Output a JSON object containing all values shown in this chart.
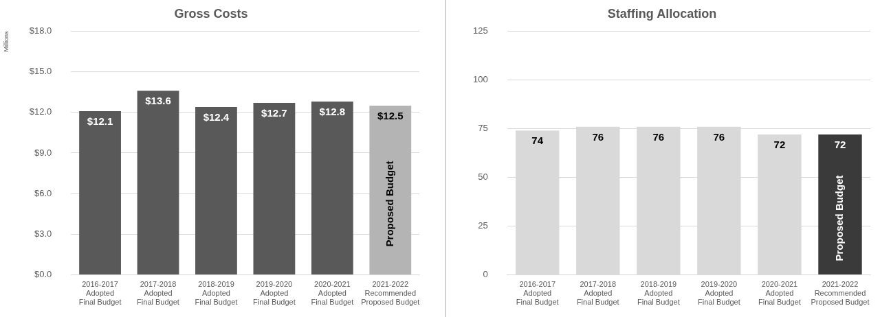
{
  "chart_data": [
    {
      "type": "bar",
      "title": "Gross Costs",
      "ylabel": "Millions",
      "categories": [
        "2016-2017\nAdopted\nFinal Budget",
        "2017-2018\nAdopted\nFinal Budget",
        "2018-2019\nAdopted\nFinal Budget",
        "2019-2020\nAdopted\nFinal Budget",
        "2020-2021\nAdopted\nFinal Budget",
        "2021-2022\nRecommended\nProposed Budget"
      ],
      "values": [
        12.1,
        13.6,
        12.4,
        12.7,
        12.8,
        12.5
      ],
      "value_labels": [
        "$12.1",
        "$13.6",
        "$12.4",
        "$12.7",
        "$12.8",
        "$12.5"
      ],
      "colors": [
        "#595959",
        "#595959",
        "#595959",
        "#595959",
        "#595959",
        "#b4b4b4"
      ],
      "ylim": [
        0,
        18
      ],
      "yticks": [
        {
          "value": 0,
          "label": "$0.0"
        },
        {
          "value": 3,
          "label": "$3.0"
        },
        {
          "value": 6,
          "label": "$6.0"
        },
        {
          "value": 9,
          "label": "$9.0"
        },
        {
          "value": 12,
          "label": "$12.0"
        },
        {
          "value": 15,
          "label": "$15.0"
        },
        {
          "value": 18,
          "label": "$18.0"
        }
      ],
      "grid": "y",
      "annotations": [
        "Proposed Budget"
      ]
    },
    {
      "type": "bar",
      "title": "Staffing Allocation",
      "categories": [
        "2016-2017\nAdopted\nFinal Budget",
        "2017-2018\nAdopted\nFinal Budget",
        "2018-2019\nAdopted\nFinal Budget",
        "2019-2020\nAdopted\nFinal Budget",
        "2020-2021\nAdopted\nFinal Budget",
        "2021-2022\nRecommended\nProposed Budget"
      ],
      "values": [
        74,
        76,
        76,
        76,
        72,
        72
      ],
      "data_labels": true,
      "colors": [
        "#d9d9d9",
        "#d9d9d9",
        "#d9d9d9",
        "#d9d9d9",
        "#d9d9d9",
        "#3a3a3a"
      ],
      "ylim": [
        0,
        125
      ],
      "yticks": [
        0,
        25,
        50,
        75,
        100,
        125
      ],
      "grid": "y",
      "annotations": [
        "Proposed Budget"
      ]
    }
  ]
}
